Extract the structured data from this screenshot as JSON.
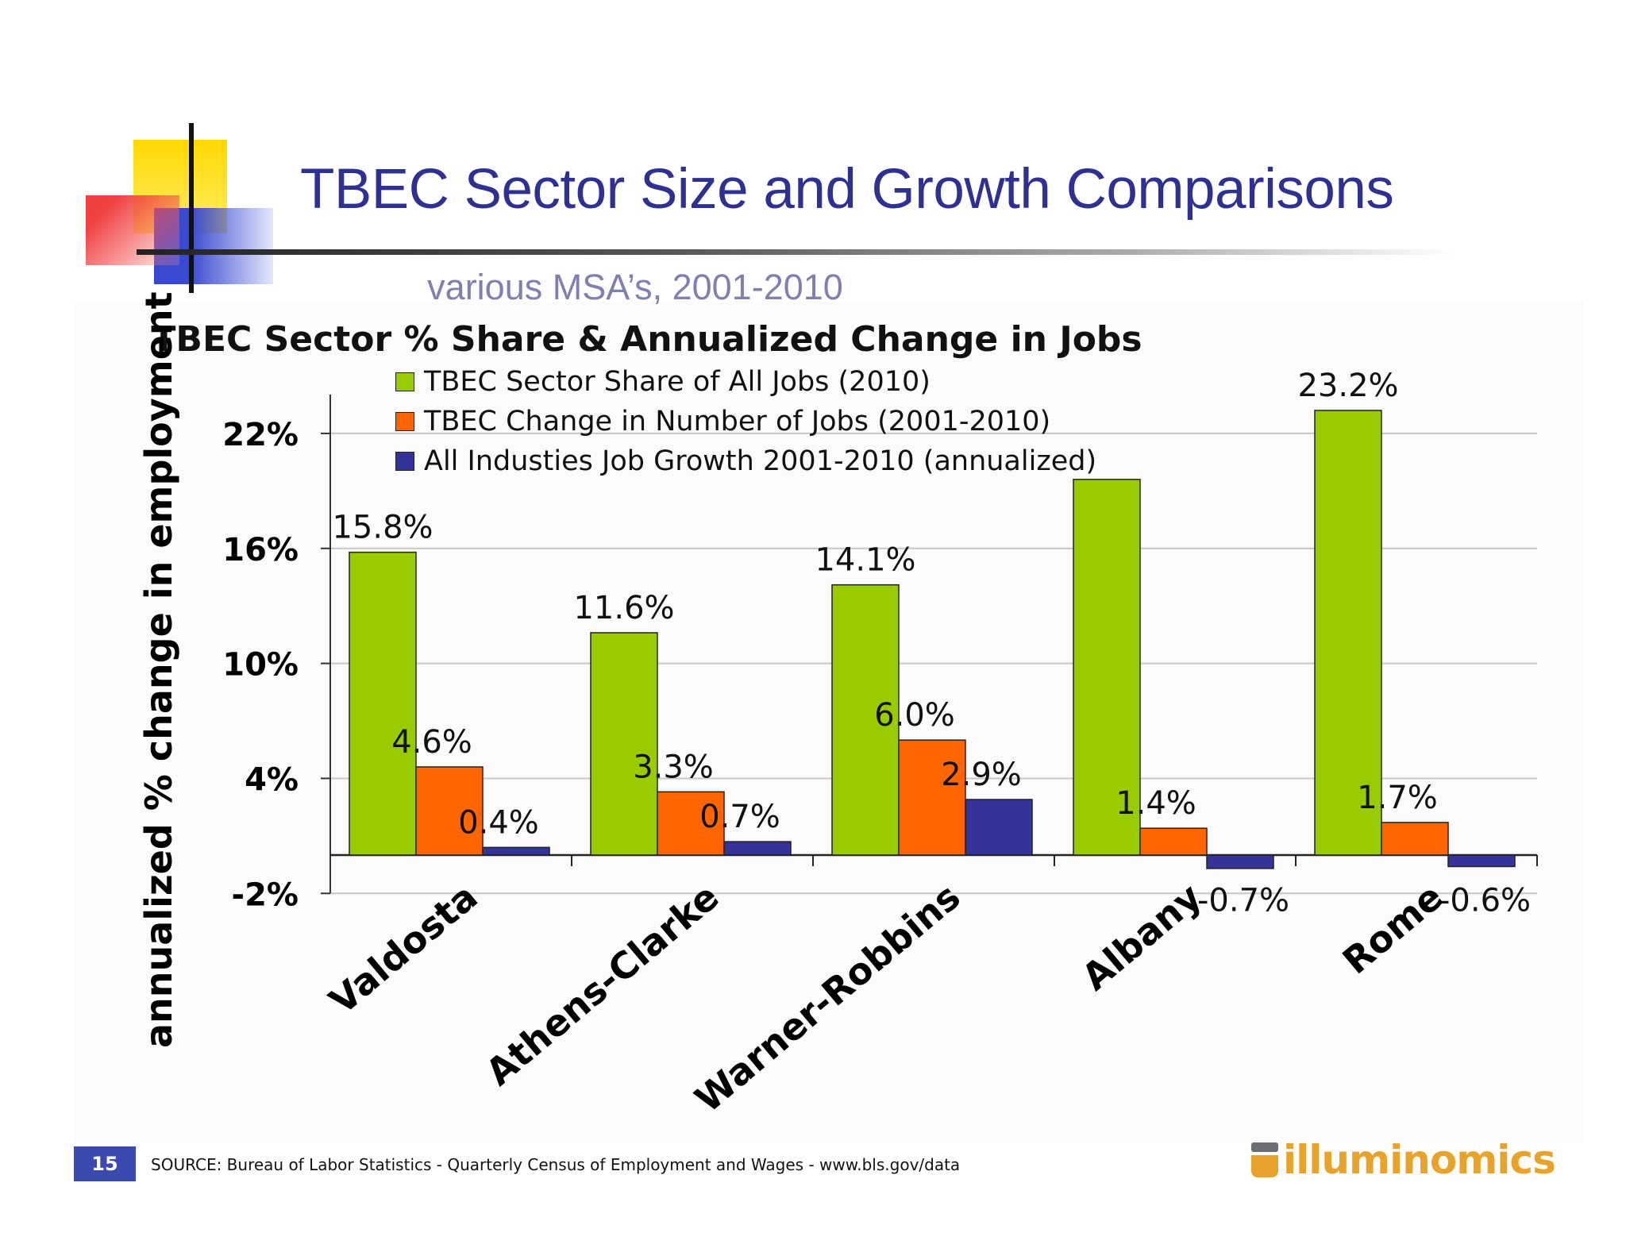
{
  "slide": {
    "title": "TBEC Sector Size and Growth Comparisons",
    "subtitle": "various MSA’s, 2001-2010",
    "page_number": "15",
    "source": "SOURCE:  Bureau of Labor Statistics - Quarterly Census of Employment and Wages - www.bls.gov/data",
    "brand": "illuminomics",
    "colors": {
      "title": "#2e3192",
      "subtitle": "#8080b0",
      "brand": "#e8a32c",
      "badge": "#3a4ab0"
    }
  },
  "chart_data": {
    "type": "bar",
    "title": "TBEC  Sector % Share & Annualized Change in Jobs",
    "ylabel": "annualized % change in employment",
    "xlabel": "",
    "categories": [
      "Valdosta",
      "Athens-Clarke",
      "Warner-Robbins",
      "Albany",
      "Rome"
    ],
    "series": [
      {
        "name": "TBEC Sector Share of All Jobs  (2010)",
        "color": "#99cc00",
        "values": [
          15.8,
          11.6,
          14.1,
          19.6,
          23.2
        ],
        "labels": [
          "15.8%",
          "11.6%",
          "14.1%",
          "",
          "23.2%"
        ]
      },
      {
        "name": "TBEC Change in Number of Jobs  (2001-2010)",
        "color": "#ff6600",
        "values": [
          4.6,
          3.3,
          6.0,
          1.4,
          1.7
        ],
        "labels": [
          "4.6%",
          "3.3%",
          "6.0%",
          "1.4%",
          "1.7%"
        ]
      },
      {
        "name": "All Industies Job Growth 2001-2010 (annualized)",
        "color": "#333399",
        "values": [
          0.4,
          0.7,
          2.9,
          -0.7,
          -0.6
        ],
        "labels": [
          "0.4%",
          "0.7%",
          "2.9%",
          "-0.7%",
          "-0.6%"
        ]
      }
    ],
    "y_ticks": [
      22,
      16,
      10,
      4,
      -2
    ],
    "y_tick_labels": [
      "22%",
      "16%",
      "10%",
      "4%",
      "-2%"
    ],
    "ylim": [
      -2,
      25
    ],
    "grid": true,
    "legend_position": "top-left"
  }
}
